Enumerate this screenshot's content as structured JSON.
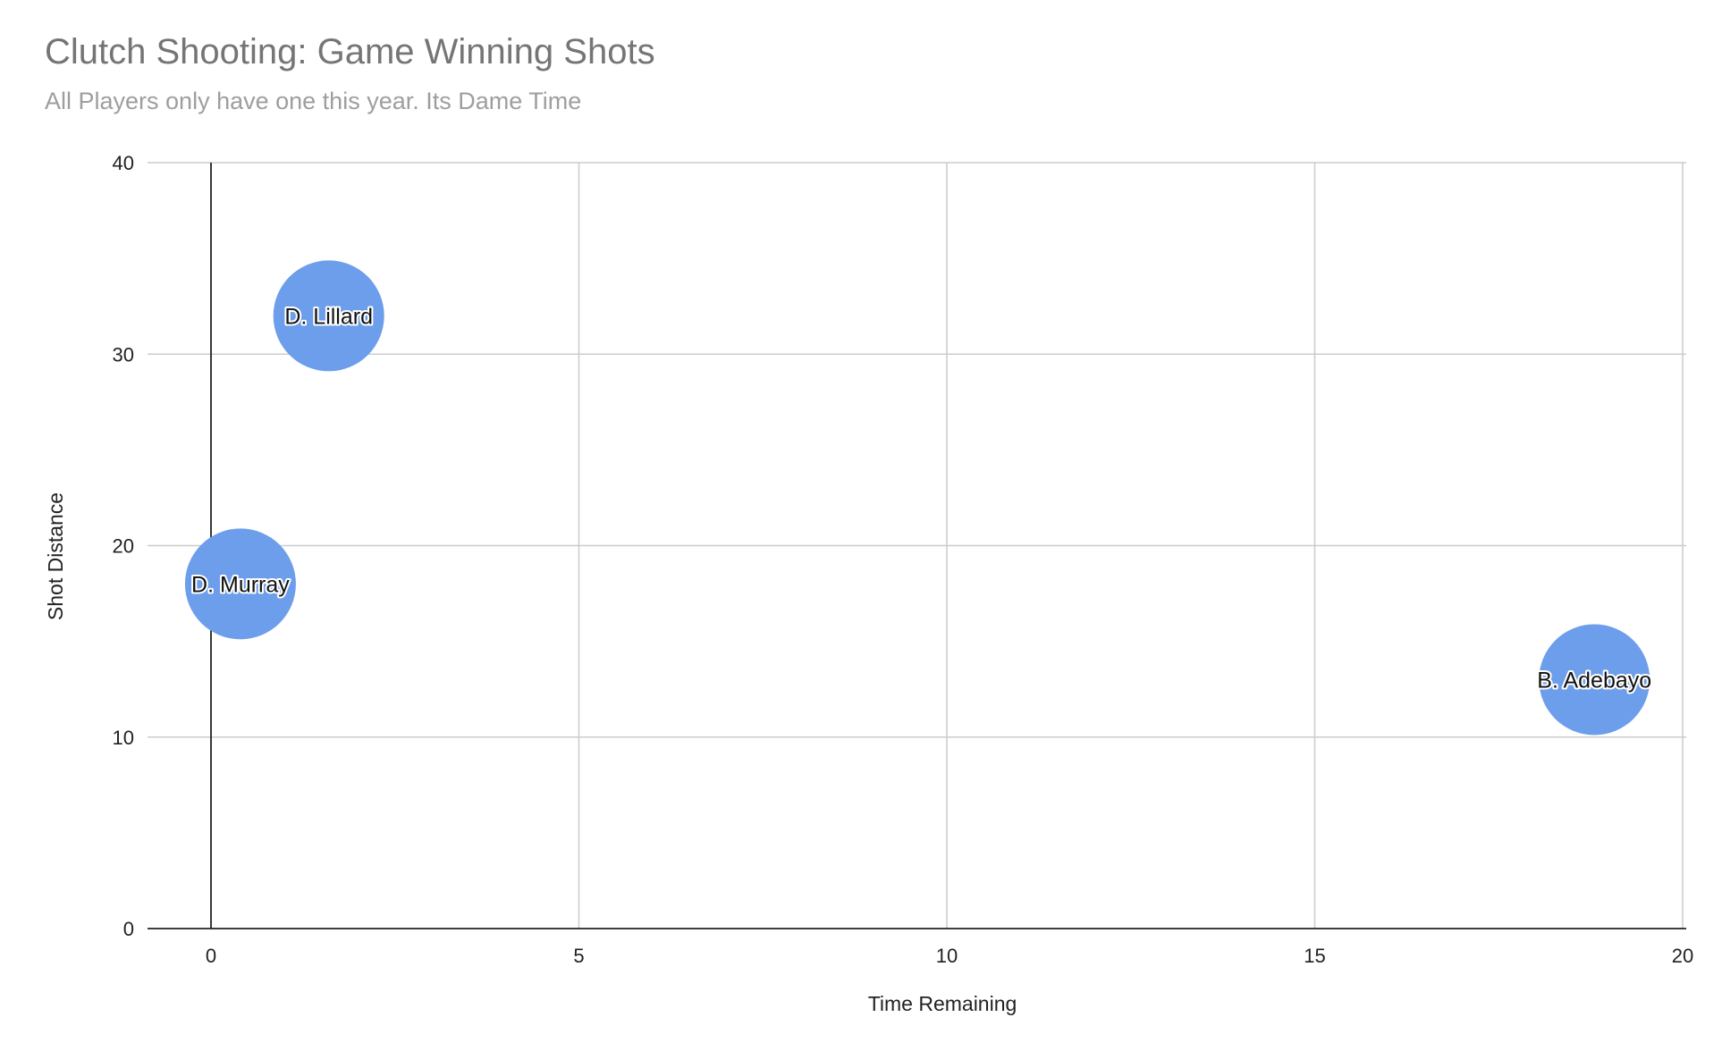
{
  "chart_data": {
    "type": "scatter",
    "title": "Clutch Shooting: Game Winning Shots",
    "subtitle": "All Players only have one this year. Its Dame Time",
    "xlabel": "Time Remaining",
    "ylabel": "Shot Distance",
    "xlim": [
      0,
      20
    ],
    "ylim": [
      0,
      40
    ],
    "xticks": [
      "0",
      "5",
      "10",
      "15",
      "20"
    ],
    "yticks": [
      "0",
      "10",
      "20",
      "30",
      "40"
    ],
    "grid": true,
    "legend": "none",
    "colors": {
      "bubble": "#6d9eeb",
      "grid": "#cccccc",
      "axis": "#222222"
    },
    "series": [
      {
        "points": [
          {
            "label": "D. Lillard",
            "x": 1.6,
            "y": 32
          },
          {
            "label": "D. Murray",
            "x": 0.4,
            "y": 18
          },
          {
            "label": "B. Adebayo",
            "x": 18.8,
            "y": 13
          }
        ]
      }
    ]
  }
}
